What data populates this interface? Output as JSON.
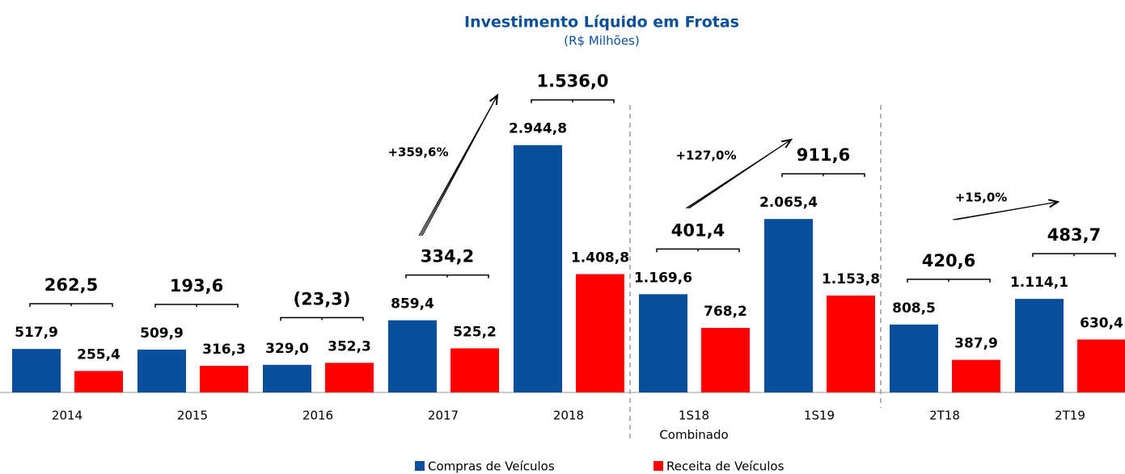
{
  "chart_data": {
    "type": "bar",
    "title": "Investimento Líquido em Frotas",
    "subtitle": "(R$ Milhões)",
    "categories": [
      "2014",
      "2015",
      "2016",
      "2017",
      "2018",
      "1S18",
      "1S19",
      "2T18",
      "2T19"
    ],
    "category_sublabel": "Combinado",
    "series": [
      {
        "name": "Compras de Veículos",
        "color": "#0a4f9c",
        "values": [
          517.9,
          509.9,
          329.0,
          859.4,
          2944.8,
          1169.6,
          2065.4,
          808.5,
          1114.1
        ],
        "value_labels": [
          "517,9",
          "509,9",
          "329,0",
          "859,4",
          "2.944,8",
          "1.169,6",
          "2.065,4",
          "808,5",
          "1.114,1"
        ]
      },
      {
        "name": "Receita de Veículos",
        "color": "#ff0000",
        "values": [
          255.4,
          316.3,
          352.3,
          525.2,
          1408.8,
          768.2,
          1153.8,
          387.9,
          630.4
        ],
        "value_labels": [
          "255,4",
          "316,3",
          "352,3",
          "525,2",
          "1.408,8",
          "768,2",
          "1.153,8",
          "387,9",
          "630,4"
        ]
      }
    ],
    "net": {
      "values": [
        262.5,
        193.6,
        -23.3,
        334.2,
        1536.0,
        401.4,
        911.6,
        420.6,
        483.7
      ],
      "value_labels": [
        "262,5",
        "193,6",
        "(23,3)",
        "334,2",
        "1.536,0",
        "401,4",
        "911,6",
        "420,6",
        "483,7"
      ]
    },
    "annotations": [
      "+359,6%",
      "+127,0%",
      "+15,0%"
    ],
    "legend": "bottom"
  }
}
